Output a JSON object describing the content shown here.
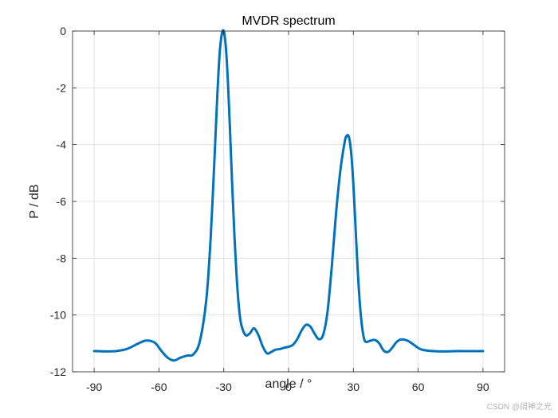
{
  "chart_data": {
    "type": "line",
    "title": "MVDR spectrum",
    "xlabel": "angle / °",
    "ylabel": "P / dB",
    "xlim": [
      -100,
      100
    ],
    "ylim": [
      -12,
      0
    ],
    "xticks": [
      -90,
      -60,
      -30,
      0,
      30,
      60,
      90
    ],
    "yticks": [
      0,
      -2,
      -4,
      -6,
      -8,
      -10,
      -12
    ],
    "grid": true,
    "series": [
      {
        "name": "MVDR spectrum",
        "color": "#0072BD",
        "x": [
          -90,
          -85,
          -80,
          -75,
          -70,
          -66,
          -62,
          -59,
          -56,
          -53,
          -50,
          -47,
          -44,
          -41,
          -38,
          -36,
          -34,
          -33,
          -32,
          -31,
          -30,
          -29,
          -28,
          -27,
          -26,
          -25,
          -24,
          -23,
          -22,
          -20,
          -18,
          -16,
          -14,
          -12,
          -10,
          -8,
          -6,
          -4,
          -2,
          0,
          2,
          4,
          6,
          8,
          10,
          12,
          14,
          16,
          18,
          20,
          22,
          24,
          26,
          27,
          28,
          29,
          30,
          31,
          32,
          33,
          34,
          35,
          36,
          38,
          40,
          42,
          44,
          46,
          48,
          50,
          52,
          55,
          58,
          61,
          64,
          67,
          70,
          74,
          78,
          82,
          86,
          90
        ],
        "y": [
          -11.27,
          -11.28,
          -11.27,
          -11.2,
          -11.02,
          -10.9,
          -10.97,
          -11.25,
          -11.5,
          -11.6,
          -11.5,
          -11.43,
          -11.38,
          -10.9,
          -9.4,
          -7.2,
          -4.0,
          -2.3,
          -0.9,
          -0.15,
          0.0,
          -0.6,
          -1.9,
          -3.7,
          -5.6,
          -7.3,
          -8.7,
          -9.7,
          -10.3,
          -10.7,
          -10.65,
          -10.47,
          -10.7,
          -11.1,
          -11.35,
          -11.3,
          -11.22,
          -11.2,
          -11.15,
          -11.12,
          -11.05,
          -10.85,
          -10.55,
          -10.35,
          -10.4,
          -10.65,
          -10.85,
          -10.7,
          -9.9,
          -8.3,
          -6.4,
          -4.9,
          -3.9,
          -3.68,
          -3.75,
          -4.3,
          -5.4,
          -6.9,
          -8.4,
          -9.6,
          -10.4,
          -10.85,
          -10.95,
          -10.9,
          -10.88,
          -11.0,
          -11.25,
          -11.3,
          -11.15,
          -10.95,
          -10.86,
          -10.9,
          -11.05,
          -11.2,
          -11.25,
          -11.27,
          -11.28,
          -11.28,
          -11.27,
          -11.27,
          -11.27,
          -11.27
        ]
      }
    ]
  },
  "watermark": "CSDN @阔神之光"
}
